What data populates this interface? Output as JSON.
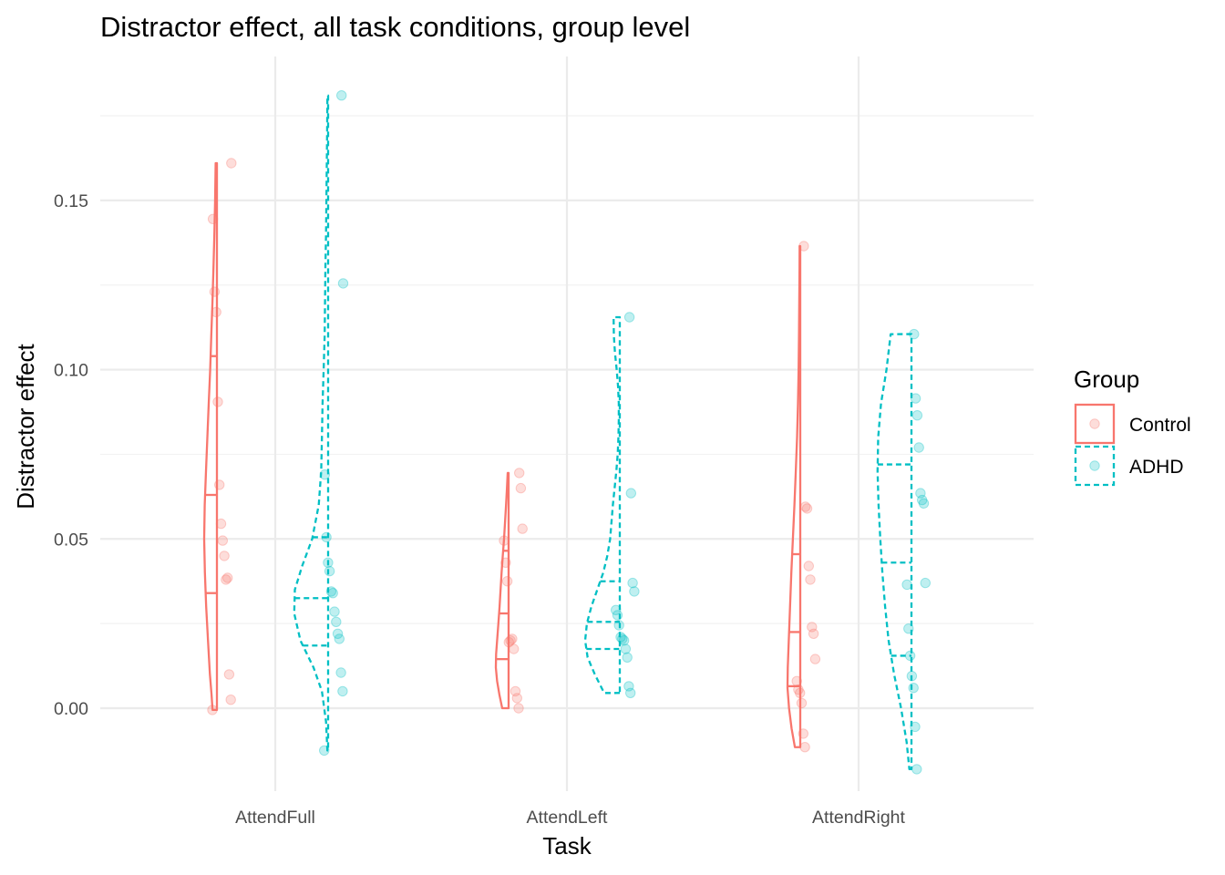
{
  "chart_data": {
    "type": "violin",
    "title": "Distractor effect, all task conditions, group level",
    "xlabel": "Task",
    "ylabel": "Distractor effect",
    "categories": [
      "AttendFull",
      "AttendLeft",
      "AttendRight"
    ],
    "y_ticks": [
      0.0,
      0.05,
      0.1,
      0.15
    ],
    "y_tick_labels": [
      "0.00",
      "0.05",
      "0.10",
      "0.15"
    ],
    "ylim": [
      -0.0245,
      0.1925
    ],
    "grid": true,
    "legend": {
      "title": "Group",
      "position": "right",
      "entries": [
        "Control",
        "ADHD"
      ]
    },
    "colors": {
      "Control": "#F8766D",
      "ADHD": "#00BFC4"
    },
    "series": [
      {
        "name": "Control",
        "line_style": "solid",
        "violins": [
          {
            "category": "AttendFull",
            "min": -0.0005,
            "max": 0.161,
            "quantiles": [
              0.034,
              0.063,
              0.104
            ],
            "density_y": [
              -0.0005,
              0.004,
              0.01,
              0.02,
              0.03,
              0.04,
              0.05,
              0.06,
              0.07,
              0.08,
              0.09,
              0.1,
              0.11,
              0.12,
              0.13,
              0.14,
              0.15,
              0.161
            ],
            "density_w": [
              0.34,
              0.42,
              0.55,
              0.7,
              0.84,
              0.94,
              1.0,
              0.96,
              0.86,
              0.75,
              0.64,
              0.53,
              0.44,
              0.35,
              0.27,
              0.2,
              0.14,
              0.1
            ],
            "points": [
              -0.0005,
              0.0025,
              0.01,
              0.0385,
              0.038,
              0.045,
              0.0495,
              0.0545,
              0.066,
              0.0905,
              0.117,
              0.123,
              0.1445,
              0.161
            ]
          },
          {
            "category": "AttendLeft",
            "min": 0.0,
            "max": 0.0695,
            "quantiles": [
              0.0145,
              0.028,
              0.0465
            ],
            "density_y": [
              0.0,
              0.004,
              0.008,
              0.012,
              0.016,
              0.02,
              0.025,
              0.03,
              0.035,
              0.04,
              0.045,
              0.05,
              0.055,
              0.06,
              0.065,
              0.0695
            ],
            "density_w": [
              0.5,
              0.72,
              0.9,
              1.0,
              0.98,
              0.9,
              0.8,
              0.71,
              0.63,
              0.55,
              0.46,
              0.36,
              0.28,
              0.2,
              0.13,
              0.07
            ],
            "points": [
              0.0,
              0.003,
              0.005,
              0.0175,
              0.0205,
              0.02,
              0.0195,
              0.0375,
              0.043,
              0.0495,
              0.053,
              0.065,
              0.0695
            ]
          },
          {
            "category": "AttendRight",
            "min": -0.0115,
            "max": 0.1365,
            "quantiles": [
              0.0065,
              0.0225,
              0.0455
            ],
            "density_y": [
              -0.0115,
              -0.006,
              0.0,
              0.006,
              0.012,
              0.02,
              0.03,
              0.04,
              0.05,
              0.06,
              0.07,
              0.08,
              0.09,
              0.1,
              0.11,
              0.12,
              0.13,
              0.1365
            ],
            "density_w": [
              0.42,
              0.68,
              0.88,
              1.0,
              0.98,
              0.9,
              0.8,
              0.7,
              0.58,
              0.46,
              0.35,
              0.25,
              0.18,
              0.13,
              0.1,
              0.08,
              0.06,
              0.05
            ],
            "points": [
              -0.0115,
              -0.0075,
              0.0015,
              0.0045,
              0.0055,
              0.008,
              0.0145,
              0.022,
              0.024,
              0.038,
              0.042,
              0.059,
              0.0595,
              0.1365
            ]
          }
        ]
      },
      {
        "name": "ADHD",
        "line_style": "dashed",
        "violins": [
          {
            "category": "AttendFull",
            "min": -0.0125,
            "max": 0.181,
            "quantiles": [
              0.0185,
              0.0325,
              0.0505
            ],
            "density_y": [
              -0.0125,
              -0.004,
              0.005,
              0.012,
              0.02,
              0.028,
              0.035,
              0.042,
              0.05,
              0.06,
              0.07,
              0.08,
              0.09,
              0.1,
              0.11,
              0.12,
              0.13,
              0.14,
              0.15,
              0.16,
              0.17,
              0.181
            ],
            "density_w": [
              0.02,
              0.06,
              0.18,
              0.42,
              0.8,
              0.98,
              0.96,
              0.75,
              0.46,
              0.27,
              0.2,
              0.18,
              0.16,
              0.13,
              0.1,
              0.09,
              0.08,
              0.06,
              0.05,
              0.04,
              0.03,
              0.02
            ],
            "points": [
              -0.0125,
              0.005,
              0.0105,
              0.0205,
              0.022,
              0.0255,
              0.0285,
              0.034,
              0.0345,
              0.0405,
              0.043,
              0.0505,
              0.069,
              0.1255,
              0.181
            ]
          },
          {
            "category": "AttendLeft",
            "min": 0.0045,
            "max": 0.1155,
            "quantiles": [
              0.0175,
              0.0255,
              0.0375
            ],
            "density_y": [
              0.0045,
              0.01,
              0.015,
              0.02,
              0.025,
              0.03,
              0.035,
              0.04,
              0.045,
              0.05,
              0.055,
              0.06,
              0.065,
              0.07,
              0.075,
              0.08,
              0.085,
              0.09,
              0.095,
              0.1,
              0.105,
              0.11,
              0.1155
            ],
            "density_w": [
              0.45,
              0.72,
              0.93,
              1.0,
              0.95,
              0.82,
              0.65,
              0.48,
              0.36,
              0.28,
              0.24,
              0.2,
              0.15,
              0.1,
              0.06,
              0.04,
              0.03,
              0.03,
              0.05,
              0.09,
              0.14,
              0.17,
              0.18
            ],
            "points": [
              0.0045,
              0.0065,
              0.015,
              0.0175,
              0.02,
              0.0205,
              0.021,
              0.0245,
              0.0275,
              0.029,
              0.0345,
              0.037,
              0.0635,
              0.1155
            ]
          },
          {
            "category": "AttendRight",
            "min": -0.018,
            "max": 0.1105,
            "quantiles": [
              0.0155,
              0.043,
              0.072
            ],
            "density_y": [
              -0.018,
              -0.01,
              0.0,
              0.01,
              0.02,
              0.03,
              0.04,
              0.05,
              0.06,
              0.07,
              0.08,
              0.09,
              0.1,
              0.1105
            ],
            "density_w": [
              0.06,
              0.14,
              0.3,
              0.5,
              0.66,
              0.76,
              0.84,
              0.9,
              0.95,
              0.98,
              0.96,
              0.88,
              0.72,
              0.6
            ],
            "points": [
              -0.018,
              -0.0055,
              0.006,
              0.0095,
              0.0155,
              0.0235,
              0.0365,
              0.037,
              0.0605,
              0.0615,
              0.0635,
              0.077,
              0.0865,
              0.0915,
              0.1105
            ]
          }
        ]
      }
    ]
  }
}
